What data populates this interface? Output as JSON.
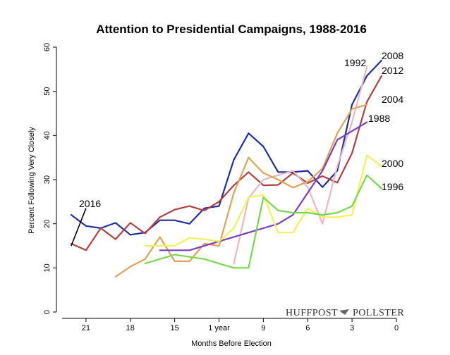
{
  "chart_data": {
    "type": "line",
    "title": "Attention to Presidential Campaigns, 1988-2016",
    "xlabel": "Months Before Election",
    "ylabel": "Percent Following Very Closely",
    "xlim": [
      23,
      0
    ],
    "ylim": [
      0,
      60
    ],
    "x_ticks": [
      21,
      18,
      15,
      12,
      9,
      6,
      3,
      0
    ],
    "x_tick_labels": [
      "21",
      "18",
      "15",
      "1 year",
      "9",
      "6",
      "3",
      "0"
    ],
    "y_ticks": [
      0,
      10,
      20,
      30,
      40,
      50,
      60
    ],
    "y_tick_labels": [
      "0",
      "10",
      "20",
      "30",
      "40",
      "50",
      "60"
    ],
    "grid": false,
    "legend": "labels at line ends",
    "series": [
      {
        "name": "2008",
        "color": "#1f2fa0",
        "points": [
          [
            22,
            22
          ],
          [
            21,
            19.5
          ],
          [
            20,
            19
          ],
          [
            19,
            20.2
          ],
          [
            18,
            17.5
          ],
          [
            17,
            18
          ],
          [
            16,
            20.8
          ],
          [
            15,
            20.8
          ],
          [
            14,
            20
          ],
          [
            13,
            23.5
          ],
          [
            12,
            24
          ],
          [
            11,
            34.5
          ],
          [
            10,
            40.5
          ],
          [
            9,
            37.5
          ],
          [
            8,
            31.7
          ],
          [
            7,
            31.7
          ],
          [
            6,
            32
          ],
          [
            5,
            28.3
          ],
          [
            4,
            32
          ],
          [
            3,
            47
          ],
          [
            2,
            53.5
          ],
          [
            1,
            57
          ]
        ]
      },
      {
        "name": "2012",
        "color": "#b0413e",
        "points": [
          [
            22,
            15.5
          ],
          [
            21,
            14
          ],
          [
            20,
            19
          ],
          [
            19,
            16.5
          ],
          [
            18,
            20.2
          ],
          [
            17,
            17.8
          ],
          [
            16,
            21.5
          ],
          [
            15,
            23.2
          ],
          [
            14,
            24
          ],
          [
            13,
            23
          ],
          [
            12,
            25
          ],
          [
            11,
            28.7
          ],
          [
            10,
            31.7
          ],
          [
            9,
            28.7
          ],
          [
            8,
            28.8
          ],
          [
            7,
            31.5
          ],
          [
            6,
            29.2
          ],
          [
            5,
            30.8
          ],
          [
            4,
            29.3
          ],
          [
            3,
            36
          ],
          [
            2,
            47.6
          ],
          [
            1,
            53.5
          ]
        ]
      },
      {
        "name": "1992",
        "color": "#e9b7c4",
        "points": [
          [
            11,
            11
          ],
          [
            10,
            25.8
          ],
          [
            9,
            30
          ],
          [
            8,
            31
          ],
          [
            7,
            32
          ],
          [
            6,
            28.3
          ],
          [
            5,
            20
          ],
          [
            4,
            33
          ],
          [
            3,
            43
          ],
          [
            2,
            55.5
          ]
        ]
      },
      {
        "name": "2004",
        "color": "#dfa257",
        "points": [
          [
            19,
            8
          ],
          [
            18,
            10.3
          ],
          [
            17,
            12
          ],
          [
            16,
            17
          ],
          [
            15,
            11.5
          ],
          [
            14,
            11.5
          ],
          [
            13,
            15.5
          ],
          [
            12,
            15
          ],
          [
            11,
            27
          ],
          [
            10,
            35
          ],
          [
            9,
            31.5
          ],
          [
            8,
            30
          ],
          [
            7,
            28.2
          ],
          [
            6,
            29.5
          ],
          [
            5,
            32.5
          ],
          [
            4,
            40.5
          ],
          [
            3,
            46
          ],
          [
            2,
            47
          ]
        ]
      },
      {
        "name": "1988",
        "color": "#7d3fc2",
        "points": [
          [
            16,
            14
          ],
          [
            14,
            14
          ],
          [
            12,
            16
          ],
          [
            10,
            18
          ],
          [
            8,
            20
          ],
          [
            7,
            22
          ],
          [
            5,
            32
          ],
          [
            4,
            39
          ],
          [
            3,
            41
          ],
          [
            2,
            43
          ]
        ]
      },
      {
        "name": "2000",
        "color": "#f4ef5a",
        "points": [
          [
            17,
            15
          ],
          [
            16,
            15
          ],
          [
            15,
            15
          ],
          [
            14,
            16.8
          ],
          [
            13,
            16.5
          ],
          [
            12,
            16
          ],
          [
            11,
            19
          ],
          [
            10,
            26
          ],
          [
            9,
            26.5
          ],
          [
            8,
            18
          ],
          [
            7,
            18
          ],
          [
            6,
            23.5
          ],
          [
            5,
            21.5
          ],
          [
            4,
            21.5
          ],
          [
            3,
            22
          ],
          [
            2,
            35.5
          ],
          [
            1,
            33
          ]
        ]
      },
      {
        "name": "1996",
        "color": "#7ad64a",
        "points": [
          [
            17,
            11
          ],
          [
            15,
            13
          ],
          [
            13,
            12
          ],
          [
            11,
            10
          ],
          [
            10,
            10
          ],
          [
            9,
            26
          ],
          [
            8,
            23
          ],
          [
            7,
            22.5
          ],
          [
            6,
            22.5
          ],
          [
            5,
            22
          ],
          [
            4,
            22.5
          ],
          [
            3,
            24
          ],
          [
            2,
            31
          ],
          [
            1,
            28
          ]
        ]
      }
    ],
    "annotations": [
      {
        "text": "2016",
        "color": "#000000",
        "points": [
          [
            22,
            15
          ],
          [
            21,
            23.5
          ]
        ]
      }
    ],
    "brand_left": "HUFFPOST",
    "brand_right": "POLLSTER"
  }
}
